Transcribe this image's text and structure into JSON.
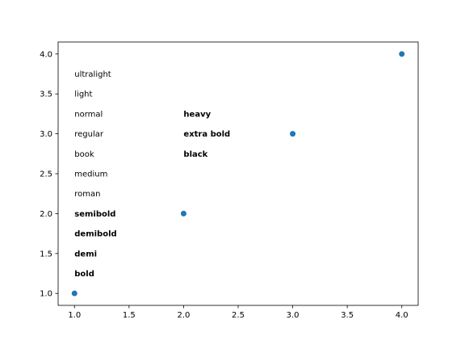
{
  "chart_data": {
    "type": "scatter",
    "x": [
      1,
      2,
      3,
      4
    ],
    "y": [
      1,
      2,
      3,
      4
    ],
    "marker_color": "#1f77b4",
    "xlim": [
      0.85,
      4.15
    ],
    "ylim": [
      0.85,
      4.15
    ],
    "xticks": [
      1.0,
      1.5,
      2.0,
      2.5,
      3.0,
      3.5,
      4.0
    ],
    "yticks": [
      1.0,
      1.5,
      2.0,
      2.5,
      3.0,
      3.5,
      4.0
    ],
    "xtick_labels": [
      "1.0",
      "1.5",
      "2.0",
      "2.5",
      "3.0",
      "3.5",
      "4.0"
    ],
    "ytick_labels": [
      "1.0",
      "1.5",
      "2.0",
      "2.5",
      "3.0",
      "3.5",
      "4.0"
    ],
    "title": "",
    "xlabel": "",
    "ylabel": "",
    "grid": false,
    "annotations": [
      {
        "text": "ultralight",
        "x": 1.0,
        "y": 3.75,
        "weight": "normal"
      },
      {
        "text": "light",
        "x": 1.0,
        "y": 3.5,
        "weight": "normal"
      },
      {
        "text": "normal",
        "x": 1.0,
        "y": 3.25,
        "weight": "normal"
      },
      {
        "text": "regular",
        "x": 1.0,
        "y": 3.0,
        "weight": "normal"
      },
      {
        "text": "book",
        "x": 1.0,
        "y": 2.75,
        "weight": "normal"
      },
      {
        "text": "medium",
        "x": 1.0,
        "y": 2.5,
        "weight": "normal"
      },
      {
        "text": "roman",
        "x": 1.0,
        "y": 2.25,
        "weight": "normal"
      },
      {
        "text": "semibold",
        "x": 1.0,
        "y": 2.0,
        "weight": "bold"
      },
      {
        "text": "demibold",
        "x": 1.0,
        "y": 1.75,
        "weight": "bold"
      },
      {
        "text": "demi",
        "x": 1.0,
        "y": 1.5,
        "weight": "bold"
      },
      {
        "text": "bold",
        "x": 1.0,
        "y": 1.25,
        "weight": "bold"
      },
      {
        "text": "heavy",
        "x": 2.0,
        "y": 3.25,
        "weight": "bold"
      },
      {
        "text": "extra bold",
        "x": 2.0,
        "y": 3.0,
        "weight": "bold"
      },
      {
        "text": "black",
        "x": 2.0,
        "y": 2.75,
        "weight": "bold"
      }
    ]
  }
}
